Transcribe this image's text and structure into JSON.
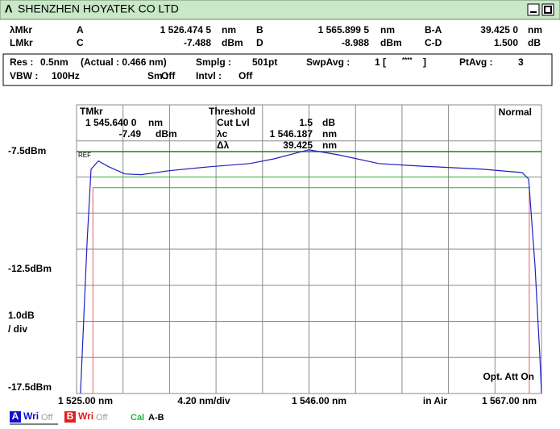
{
  "title_bar": {
    "title": "SHENZHEN HOYATEK CO LTD"
  },
  "markers": {
    "row1_label": "λMkr",
    "row2_label": "LMkr",
    "A": {
      "name": "A",
      "reading": {
        "value": 1526.4745,
        "label": "1 526.474 5"
      },
      "unit": "nm"
    },
    "B": {
      "name": "B",
      "reading": {
        "value": 1565.8995,
        "label": "1 565.899 5"
      },
      "unit": "nm"
    },
    "BA": {
      "name": "B-A",
      "reading": {
        "value": 39.425,
        "label": "39.425 0"
      },
      "unit": "nm"
    },
    "C": {
      "name": "C",
      "reading": -7.488,
      "unit": "dBm"
    },
    "D": {
      "name": "D",
      "reading": -8.988,
      "unit": "dBm"
    },
    "CD": {
      "name": "C-D",
      "reading": {
        "value": 1.5,
        "label": "1.500"
      },
      "unit": "dB"
    }
  },
  "settings": {
    "res_label": "Res :",
    "res": "0.5nm",
    "actual": "(Actual : 0.466 nm)",
    "smplg_label": "Smplg :",
    "smplg": "501pt",
    "swpavg_label": "SwpAvg :",
    "swpavg": "1 [",
    "swpavg_mark": "****",
    "swpavg_close": "]",
    "ptavg_label": "PtAvg :",
    "ptavg": 3,
    "vbw_label": "VBW :",
    "vbw": "100Hz",
    "sm_label": "Sm :",
    "sm": "Off",
    "intvl_label": "Intvl :",
    "intvl": "Off"
  },
  "plot": {
    "tmkr": {
      "label": "TMkr",
      "wavelength": "1 545.640 0",
      "wavelength_unit": "nm",
      "level": -7.49,
      "level_unit": "dBm"
    },
    "threshold": {
      "label": "Threshold",
      "cut_label": "Cut Lvl",
      "cut": 1.5,
      "cut_unit": "dB",
      "center_label": "λc",
      "center": "1 546.187",
      "center_unit": "nm",
      "width_label": "Δλ",
      "width": 39.425,
      "width_unit": "nm"
    },
    "mode": "Normal",
    "ref_tag": "REF",
    "att": "Opt. Att On",
    "y_labels": {
      "ref": {
        "value": -7.5,
        "label": "-7.5dBm"
      },
      "mid": "-12.5dBm",
      "bottom": "-17.5dBm",
      "scale": {
        "value": 1.0,
        "label": "1.0dB"
      },
      "scale_unit": "/ div"
    },
    "x_labels": {
      "start": {
        "value": 1525,
        "label": "1 525.00 nm"
      },
      "span": "4.20 nm/div",
      "center": {
        "value": 1546,
        "label": "1 546.00 nm"
      },
      "medium": "in Air",
      "stop": {
        "value": 1567,
        "label": "1 567.00 nm"
      }
    },
    "trace": {
      "color": "#2020c0",
      "x": [
        1525.36,
        1525.95,
        1526.31,
        1526.97,
        1527.91,
        1529.37,
        1530.82,
        1533.37,
        1537.01,
        1540.65,
        1542.83,
        1545.96,
        1548.66,
        1552.3,
        1555.94,
        1561.76,
        1565.25,
        1565.84,
        1566.42,
        1566.85,
        1567.0
      ],
      "y": [
        -14.2,
        -10.0,
        -7.99,
        -7.76,
        -7.92,
        -8.12,
        -8.14,
        -8.03,
        -7.92,
        -7.83,
        -7.7,
        -7.45,
        -7.59,
        -7.83,
        -7.9,
        -7.99,
        -8.08,
        -8.26,
        -10.67,
        -13.13,
        -14.2
      ]
    },
    "marker_color": "#e06060"
  },
  "footer": {
    "a": "A",
    "a_mode": "Wri",
    "a_state": "Off",
    "b": "B",
    "b_mode": "Wri",
    "b_state": "Off",
    "cal": "Cal",
    "cal_mode": "A-B"
  }
}
